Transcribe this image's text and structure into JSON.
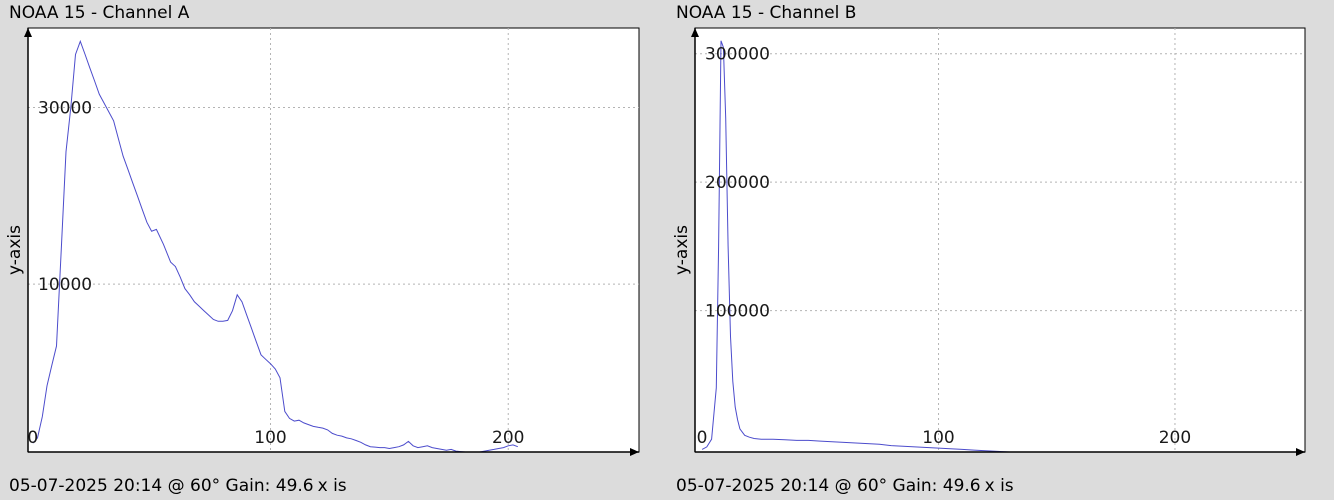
{
  "chart_data": [
    {
      "type": "line",
      "title": "NOAA 15 - Channel A",
      "ylabel": "y-axis",
      "xlabel": "x is",
      "footer": "05-07-2025 20:14 @ 60° Gain: 49.6",
      "xlim": [
        -2,
        255
      ],
      "ylim": [
        -9000,
        39000
      ],
      "xticks": [
        0,
        100,
        200
      ],
      "yticks": [
        10000,
        30000
      ],
      "xtick_labels": [
        "0",
        "100",
        "200"
      ],
      "ytick_labels": [
        "10000",
        "30000"
      ],
      "grid": true,
      "line_color": "#4c4ccc",
      "x": [
        0,
        2,
        4,
        6,
        8,
        10,
        12,
        14,
        16,
        18,
        20,
        22,
        24,
        26,
        28,
        30,
        32,
        34,
        36,
        38,
        40,
        42,
        44,
        46,
        48,
        50,
        52,
        55,
        58,
        60,
        62,
        64,
        66,
        68,
        70,
        72,
        74,
        76,
        78,
        80,
        82,
        84,
        86,
        88,
        90,
        92,
        94,
        96,
        98,
        100,
        102,
        104,
        106,
        108,
        110,
        112,
        114,
        116,
        118,
        120,
        122,
        124,
        126,
        128,
        130,
        132,
        134,
        136,
        138,
        140,
        142,
        144,
        146,
        148,
        150,
        152,
        154,
        156,
        158,
        160,
        162,
        164,
        166,
        168,
        170,
        172,
        174,
        176,
        178,
        180,
        182,
        184,
        186,
        188,
        190,
        192,
        194,
        196,
        198,
        200,
        202,
        204
      ],
      "y": [
        -8000,
        -7400,
        -5000,
        -1500,
        800,
        3000,
        14000,
        25000,
        30000,
        36000,
        37500,
        36000,
        34500,
        33000,
        31500,
        30500,
        29500,
        28500,
        26500,
        24500,
        23000,
        21500,
        20000,
        18500,
        17000,
        16000,
        16200,
        14500,
        12500,
        12000,
        10800,
        9500,
        8800,
        8000,
        7500,
        7000,
        6500,
        6000,
        5800,
        5800,
        5900,
        7000,
        8800,
        8000,
        6500,
        5000,
        3500,
        2000,
        1500,
        1000,
        400,
        -600,
        -4400,
        -5200,
        -5500,
        -5400,
        -5700,
        -5900,
        -6100,
        -6200,
        -6300,
        -6500,
        -6900,
        -7100,
        -7200,
        -7400,
        -7500,
        -7700,
        -7900,
        -8200,
        -8400,
        -8450,
        -8500,
        -8500,
        -8600,
        -8500,
        -8400,
        -8200,
        -7800,
        -8300,
        -8500,
        -8400,
        -8300,
        -8500,
        -8600,
        -8700,
        -8800,
        -8700,
        -8900,
        -8950,
        -9000,
        -9000,
        -9000,
        -9000,
        -8900,
        -8800,
        -8700,
        -8600,
        -8500,
        -8300,
        -8200,
        -8400
      ]
    },
    {
      "type": "line",
      "title": "NOAA 15 - Channel B",
      "ylabel": "y-axis",
      "xlabel": "x is",
      "footer": "05-07-2025 20:14 @ 60° Gain: 49.6",
      "xlim": [
        -3,
        255
      ],
      "ylim": [
        -10000,
        320000
      ],
      "xticks": [
        0,
        100,
        200
      ],
      "yticks": [
        100000,
        200000,
        300000
      ],
      "xtick_labels": [
        "0",
        "100",
        "200"
      ],
      "ytick_labels": [
        "100000",
        "200000",
        "300000"
      ],
      "grid": true,
      "line_color": "#4c4ccc",
      "x": [
        0,
        2,
        4,
        6,
        7,
        8,
        9,
        10,
        11,
        12,
        13,
        14,
        15,
        16,
        18,
        20,
        22,
        25,
        30,
        35,
        40,
        45,
        50,
        55,
        60,
        65,
        70,
        75,
        80,
        85,
        90,
        95,
        100,
        105,
        110,
        115,
        120,
        125,
        130
      ],
      "y": [
        -8000,
        -6000,
        0,
        40000,
        150000,
        310000,
        305000,
        250000,
        150000,
        80000,
        45000,
        25000,
        15000,
        8000,
        3000,
        1500,
        500,
        0,
        0,
        -500,
        -1000,
        -1000,
        -1500,
        -2000,
        -2500,
        -3000,
        -3500,
        -4000,
        -5000,
        -5500,
        -6000,
        -6500,
        -7000,
        -7500,
        -8000,
        -8500,
        -9000,
        -9500,
        -10000
      ]
    }
  ]
}
